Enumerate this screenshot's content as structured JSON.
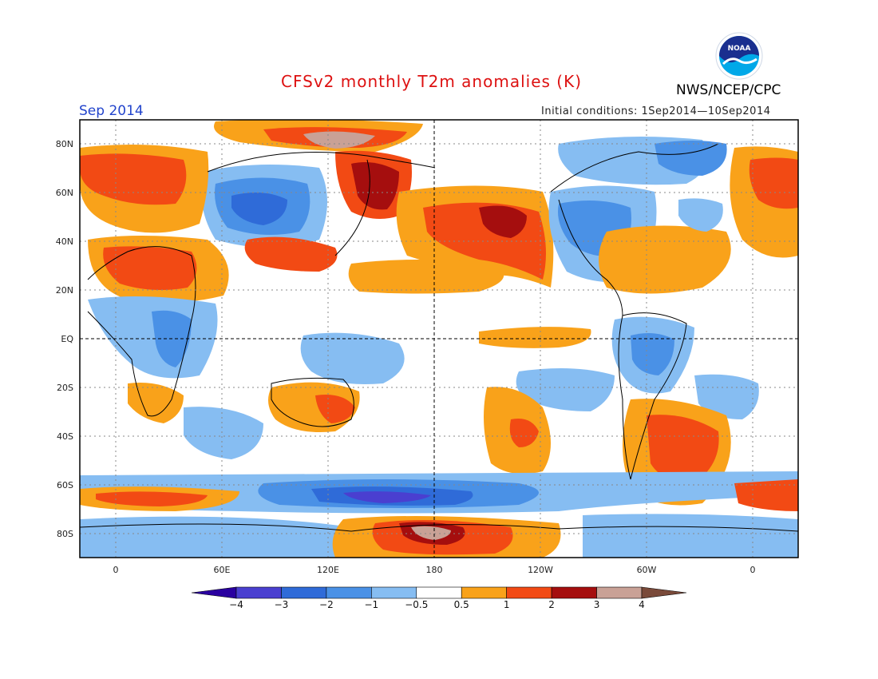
{
  "header": {
    "title": "CFSv2 monthly T2m anomalies (K)",
    "month": "Sep 2014",
    "initial_conditions": "Initial conditions: 1Sep2014—10Sep2014",
    "agency": "NWS/NCEP/CPC",
    "logo_text": "NOAA"
  },
  "map": {
    "lat_labels": [
      "80N",
      "60N",
      "40N",
      "20N",
      "EQ",
      "20S",
      "40S",
      "60S",
      "80S"
    ],
    "lon_labels": [
      "0",
      "60E",
      "120E",
      "180",
      "120W",
      "60W",
      "0"
    ]
  },
  "colorbar": {
    "labels": [
      "−4",
      "−3",
      "−2",
      "−1",
      "−0.5",
      "0.5",
      "1",
      "2",
      "3",
      "4"
    ],
    "colors": [
      "#2a00a0",
      "#4a3fd0",
      "#2f6bd8",
      "#4a91e6",
      "#86bdf2",
      "#ffffff",
      "#f9a21a",
      "#f24a14",
      "#a50e0e",
      "#c9a196",
      "#7a4a3a"
    ]
  }
}
